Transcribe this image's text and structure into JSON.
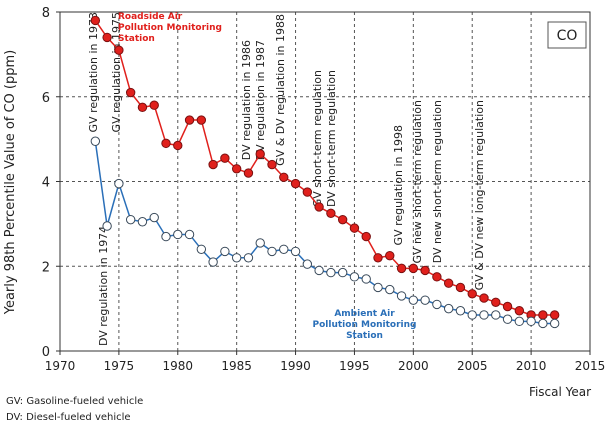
{
  "chart_data": {
    "type": "line",
    "ylabel": "Yearly 98th Percentile Value of CO (ppm)",
    "xlabel": "Fiscal Year",
    "panel_label": "CO",
    "xlim": [
      1970,
      2015
    ],
    "xticks": [
      1970,
      1975,
      1980,
      1985,
      1990,
      1995,
      2000,
      2005,
      2010,
      2015
    ],
    "ylim": [
      0,
      8
    ],
    "yticks": [
      0,
      2,
      4,
      6,
      8
    ],
    "grid": true,
    "x": [
      1973,
      1974,
      1975,
      1976,
      1977,
      1978,
      1979,
      1980,
      1981,
      1982,
      1983,
      1984,
      1985,
      1986,
      1987,
      1988,
      1989,
      1990,
      1991,
      1992,
      1993,
      1994,
      1995,
      1996,
      1997,
      1998,
      1999,
      2000,
      2001,
      2002,
      2003,
      2004,
      2005,
      2006,
      2007,
      2008,
      2009,
      2010,
      2011,
      2012
    ],
    "series": [
      {
        "name": "Roadside Air Pollution Monitoring Station",
        "color": "#e0201c",
        "values": [
          7.8,
          7.4,
          7.1,
          6.1,
          5.75,
          5.8,
          4.9,
          4.85,
          5.45,
          5.45,
          4.4,
          4.55,
          4.3,
          4.2,
          4.65,
          4.4,
          4.1,
          3.95,
          3.75,
          3.4,
          3.25,
          3.1,
          2.9,
          2.7,
          2.2,
          2.25,
          1.95,
          1.95,
          1.9,
          1.75,
          1.6,
          1.5,
          1.35,
          1.25,
          1.15,
          1.05,
          0.95,
          0.85,
          0.85,
          0.85
        ]
      },
      {
        "name": "Ambient Air Pollution Monitoring Station",
        "color": "#2a6fb8",
        "values": [
          4.95,
          2.95,
          3.95,
          3.1,
          3.05,
          3.15,
          2.7,
          2.75,
          2.75,
          2.4,
          2.1,
          2.35,
          2.2,
          2.2,
          2.55,
          2.35,
          2.4,
          2.35,
          2.05,
          1.9,
          1.85,
          1.85,
          1.75,
          1.7,
          1.5,
          1.45,
          1.3,
          1.2,
          1.2,
          1.1,
          1.0,
          0.95,
          0.85,
          0.85,
          0.85,
          0.75,
          0.7,
          0.7,
          0.65,
          0.65
        ]
      }
    ],
    "annotations": [
      "GV regulation in 1973",
      "GV regulation in 1975",
      "DV regulation in 1974",
      "DV regulation in 1986",
      "DV regulation in 1987",
      "GV & DV regulation in 1988",
      "GV short-term regulation",
      "DV short-term regulation",
      "GV regulation in 1998",
      "GV new short-term regulation",
      "DV new short-term regulation",
      "GV & DV new long-term regulation"
    ],
    "notes": [
      "GV: Gasoline-fueled vehicle",
      "DV: Diesel-fueled vehicle"
    ]
  }
}
